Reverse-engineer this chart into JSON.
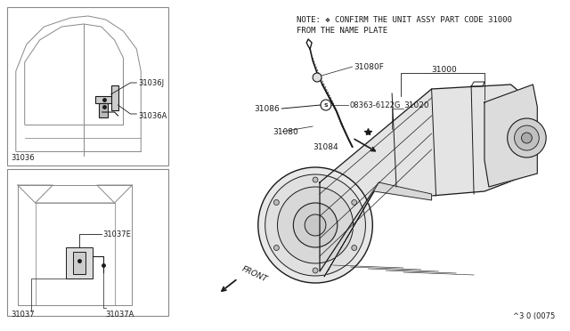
{
  "background_color": "#ffffff",
  "dark": "#1a1a1a",
  "gray": "#888888",
  "light_gray": "#d8d8d8",
  "note_text_line1": "NOTE: ❖ CONFIRM THE UNIT ASSY PART CODE 31000",
  "note_text_line2": "FROM THE NAME PLATE",
  "diagram_number": "^3 0 (0075"
}
